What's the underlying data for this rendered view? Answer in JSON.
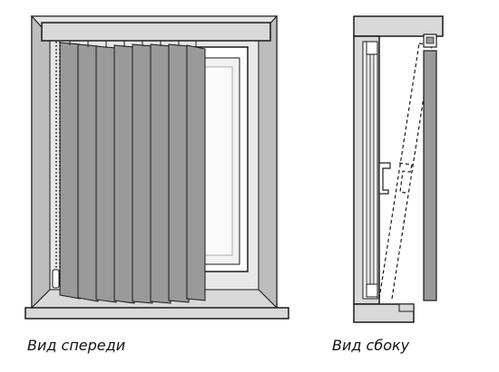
{
  "captions": {
    "front": "Вид спереди",
    "side": "Вид сбоку"
  },
  "colors": {
    "outline": "#1a1a1a",
    "wall_gray": "#cfcfcf",
    "frame_gray": "#d9d9d9",
    "slat_gray": "#9a9a9a",
    "glass": "#f2f2f2"
  }
}
